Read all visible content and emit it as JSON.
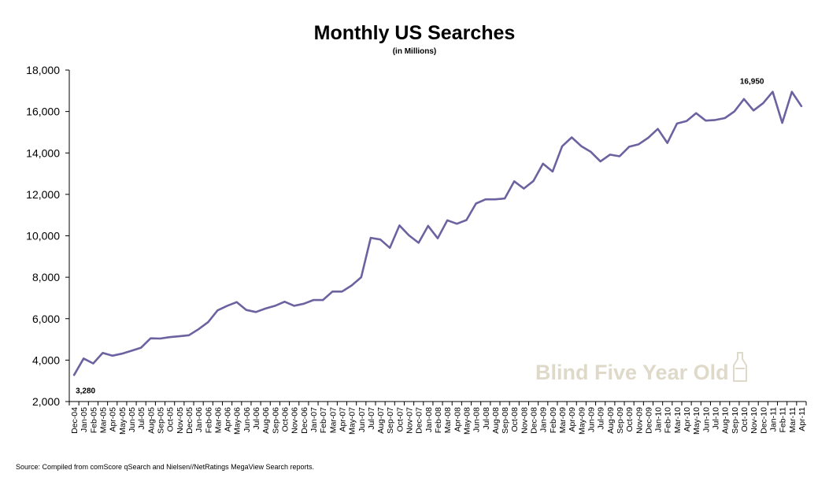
{
  "chart_data": {
    "type": "line",
    "title": "Monthly US Searches",
    "subtitle": "(in Millions)",
    "source": "Source: Compiled from comScore qSearch and Nielsen//NetRatings MegaView Search reports.",
    "watermark": "Blind Five Year Old",
    "line_color": "#6c62a0",
    "ylim": [
      2000,
      18000
    ],
    "yticks": [
      "2,000",
      "4,000",
      "6,000",
      "8,000",
      "10,000",
      "12,000",
      "14,000",
      "16,000",
      "18,000"
    ],
    "ytick_values": [
      2000,
      4000,
      6000,
      8000,
      10000,
      12000,
      14000,
      16000,
      18000
    ],
    "grid": false,
    "categories": [
      "Dec-04",
      "Jan-05",
      "Feb-05",
      "Mar-05",
      "Apr-05",
      "May-05",
      "Jun-05",
      "Jul-05",
      "Aug-05",
      "Sep-05",
      "Oct-05",
      "Nov-05",
      "Dec-05",
      "Jan-06",
      "Feb-06",
      "Mar-06",
      "Apr-06",
      "May-06",
      "Jun-06",
      "Jul-06",
      "Aug-06",
      "Sep-06",
      "Oct-06",
      "Nov-06",
      "Dec-06",
      "Jan-07",
      "Feb-07",
      "Mar-07",
      "Apr-07",
      "May-07",
      "Jun-07",
      "Jul-07",
      "Aug-07",
      "Sep-07",
      "Oct-07",
      "Nov-07",
      "Dec-07",
      "Jan-08",
      "Feb-08",
      "Mar-08",
      "Apr-08",
      "May-08",
      "Jun-08",
      "Jul-08",
      "Aug-08",
      "Sep-08",
      "Oct-08",
      "Nov-08",
      "Dec-08",
      "Jan-09",
      "Feb-09",
      "Mar-09",
      "Apr-09",
      "May-09",
      "Jun-09",
      "Jul-09",
      "Aug-09",
      "Sep-09",
      "Oct-09",
      "Nov-09",
      "Dec-09",
      "Jan-10",
      "Feb-10",
      "Mar-10",
      "Apr-10",
      "May-10",
      "Jun-10",
      "Jul-10",
      "Aug-10",
      "Sep-10",
      "Oct-10",
      "Nov-10",
      "Dec-10",
      "Jan-11",
      "Feb-11",
      "Mar-11",
      "Apr-11"
    ],
    "values": [
      3280,
      4080,
      3840,
      4350,
      4210,
      4310,
      4450,
      4600,
      5050,
      5040,
      5110,
      5150,
      5200,
      5490,
      5830,
      6400,
      6620,
      6800,
      6420,
      6320,
      6490,
      6620,
      6820,
      6620,
      6720,
      6900,
      6900,
      7310,
      7310,
      7600,
      8000,
      9900,
      9820,
      9420,
      10500,
      10020,
      9660,
      10480,
      9880,
      10750,
      10580,
      10760,
      11560,
      11760,
      11760,
      11800,
      12630,
      12280,
      12650,
      13480,
      13100,
      14320,
      14750,
      14330,
      14050,
      13590,
      13920,
      13840,
      14300,
      14420,
      14730,
      15160,
      14480,
      15420,
      15540,
      15920,
      15560,
      15590,
      15680,
      16000,
      16600,
      16050,
      16400,
      16950,
      15450,
      16950,
      16260
    ],
    "annotations": [
      {
        "label": "3,280",
        "index": 0
      },
      {
        "label": "16,950",
        "index": 73
      }
    ]
  }
}
